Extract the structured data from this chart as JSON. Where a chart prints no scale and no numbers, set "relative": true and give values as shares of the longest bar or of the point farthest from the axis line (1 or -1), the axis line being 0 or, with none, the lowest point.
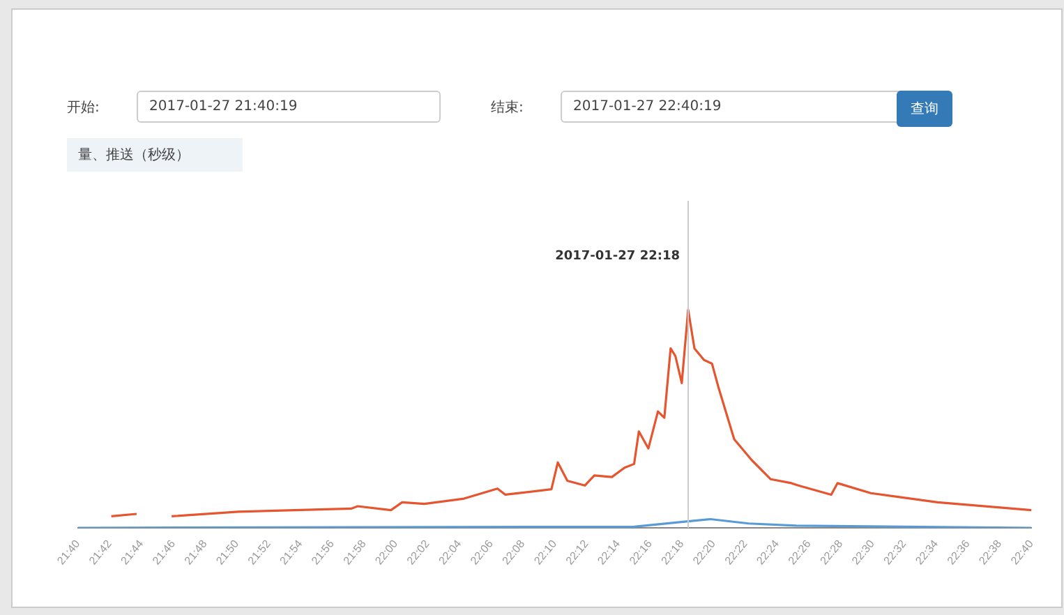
{
  "chart_data": {
    "type": "line",
    "relative": true,
    "xlim": [
      21.6667,
      22.6667
    ],
    "xticks": [
      {
        "value": 21.6667,
        "label": "21:40"
      },
      {
        "value": 21.7,
        "label": "21:42"
      },
      {
        "value": 21.7333,
        "label": "21:44"
      },
      {
        "value": 21.7667,
        "label": "21:46"
      },
      {
        "value": 21.8,
        "label": "21:48"
      },
      {
        "value": 21.8333,
        "label": "21:50"
      },
      {
        "value": 21.8667,
        "label": "21:52"
      },
      {
        "value": 21.9,
        "label": "21:54"
      },
      {
        "value": 21.9333,
        "label": "21:56"
      },
      {
        "value": 21.9667,
        "label": "21:58"
      },
      {
        "value": 22.0,
        "label": "22:00"
      },
      {
        "value": 22.0333,
        "label": "22:02"
      },
      {
        "value": 22.0667,
        "label": "22:04"
      },
      {
        "value": 22.1,
        "label": "22:06"
      },
      {
        "value": 22.1333,
        "label": "22:08"
      },
      {
        "value": 22.1667,
        "label": "22:10"
      },
      {
        "value": 22.2,
        "label": "22:12"
      },
      {
        "value": 22.2333,
        "label": "22:14"
      },
      {
        "value": 22.2667,
        "label": "22:16"
      },
      {
        "value": 22.3,
        "label": "22:18"
      },
      {
        "value": 22.3333,
        "label": "22:20"
      },
      {
        "value": 22.3667,
        "label": "22:22"
      },
      {
        "value": 22.4,
        "label": "22:24"
      },
      {
        "value": 22.4333,
        "label": "22:26"
      },
      {
        "value": 22.4667,
        "label": "22:28"
      },
      {
        "value": 22.5,
        "label": "22:30"
      },
      {
        "value": 22.5333,
        "label": "22:32"
      },
      {
        "value": 22.5667,
        "label": "22:34"
      },
      {
        "value": 22.6,
        "label": "22:36"
      },
      {
        "value": 22.6333,
        "label": "22:38"
      },
      {
        "value": 22.6667,
        "label": "22:40"
      }
    ],
    "legend": false,
    "marker": "none",
    "line_style": "solid",
    "series": [
      {
        "color": "#e5552f",
        "x": [
          21.7017,
          21.7283,
          21.7467,
          21.765,
          21.835,
          21.9533,
          21.96,
          21.995,
          22.0067,
          22.03,
          22.0717,
          22.1067,
          22.115,
          22.1633,
          22.17,
          22.18,
          22.1983,
          22.2083,
          22.2267,
          22.24,
          22.25,
          22.255,
          22.265,
          22.275,
          22.2817,
          22.2883,
          22.2933,
          22.3,
          22.3067,
          22.3133,
          22.3233,
          22.3317,
          22.3383,
          22.355,
          22.3733,
          22.3933,
          22.415,
          22.4217,
          22.4567,
          22.4633,
          22.4983,
          22.5683,
          22.6667
        ],
        "values": [
          0.053,
          0.064,
          null,
          0.053,
          0.074,
          0.088,
          0.099,
          0.081,
          0.117,
          0.11,
          0.134,
          0.18,
          0.152,
          0.177,
          0.3,
          0.216,
          0.194,
          0.24,
          0.233,
          0.276,
          0.293,
          0.442,
          0.364,
          0.534,
          0.505,
          0.823,
          0.788,
          0.664,
          1.0,
          0.823,
          0.77,
          0.753,
          0.647,
          0.406,
          0.311,
          0.223,
          0.205,
          0.195,
          0.152,
          0.205,
          0.159,
          0.117,
          0.081
        ]
      },
      {
        "color": "#5b9bd5",
        "x": [
          21.6667,
          22.25,
          22.3067,
          22.33,
          22.37,
          22.42,
          22.6667
        ],
        "values": [
          0,
          0.005,
          0.03,
          0.04,
          0.02,
          0.01,
          0
        ]
      }
    ],
    "ref_lines": [
      {
        "axis": "x",
        "value": 22.3067,
        "label": "2017-01-27 22:18"
      }
    ],
    "annotations": [
      "开始:",
      "2017-01-27 21:40:19",
      "结束:",
      "2017-01-27 22:40:19",
      "查询",
      "量、推送（秒级）"
    ]
  }
}
